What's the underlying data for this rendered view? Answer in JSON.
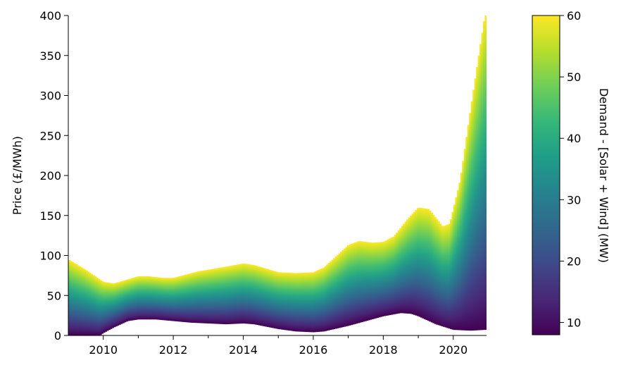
{
  "chart_data": {
    "type": "area",
    "subtype": "stacked-gradient-band",
    "ylabel": "Price (£/MWh)",
    "xlabel": "",
    "xlim": [
      2009.0,
      2020.95
    ],
    "ylim": [
      0,
      400
    ],
    "xticks": [
      2010,
      2012,
      2014,
      2016,
      2018,
      2020
    ],
    "xtick_labels": [
      "2010",
      "2012",
      "2014",
      "2016",
      "2018",
      "2020"
    ],
    "xminor_ticks": [
      2011,
      2013,
      2015,
      2017,
      2019
    ],
    "yticks": [
      0,
      50,
      100,
      150,
      200,
      250,
      300,
      350,
      400
    ],
    "ytick_labels": [
      "0",
      "50",
      "100",
      "150",
      "200",
      "250",
      "300",
      "350",
      "400"
    ],
    "grid": false,
    "series": [
      {
        "name": "Demand - [Solar + Wind] = 60 (upper edge)",
        "x": [
          2009.0,
          2009.5,
          2010.0,
          2010.3,
          2011.0,
          2011.3,
          2011.7,
          2012.0,
          2012.7,
          2013.5,
          2014.0,
          2014.3,
          2015.0,
          2015.5,
          2016.0,
          2016.3,
          2017.0,
          2017.3,
          2017.7,
          2018.0,
          2018.3,
          2018.7,
          2019.0,
          2019.3,
          2019.7,
          2019.9,
          2020.2,
          2020.5,
          2020.9
        ],
        "y": [
          95,
          82,
          67,
          65,
          74,
          74,
          72,
          72,
          80,
          86,
          90,
          88,
          79,
          78,
          79,
          85,
          113,
          118,
          116,
          117,
          124,
          146,
          160,
          158,
          136,
          140,
          195,
          285,
          400
        ]
      },
      {
        "name": "Demand - [Solar + Wind] = 8 (lower edge)",
        "x": [
          2009.0,
          2009.5,
          2009.9,
          2010.0,
          2010.3,
          2010.7,
          2011.0,
          2011.5,
          2012.0,
          2012.5,
          2013.0,
          2013.5,
          2014.0,
          2014.3,
          2015.0,
          2015.5,
          2016.0,
          2016.3,
          2017.0,
          2017.5,
          2018.0,
          2018.5,
          2018.8,
          2019.0,
          2019.5,
          2020.0,
          2020.5,
          2020.9
        ],
        "y": [
          0,
          0,
          0,
          3,
          10,
          18,
          20,
          20,
          18,
          16,
          15,
          14,
          15,
          14,
          8,
          5,
          4,
          5,
          12,
          18,
          24,
          28,
          27,
          24,
          14,
          7,
          6,
          7
        ]
      }
    ],
    "colorbar": {
      "label": "Demand - [Solar + Wind] (MW)",
      "colormap": "viridis",
      "range": [
        8,
        60
      ],
      "ticks": [
        10,
        20,
        30,
        40,
        50,
        60
      ],
      "tick_labels": [
        "10",
        "20",
        "30",
        "40",
        "50",
        "60"
      ]
    },
    "colors": {
      "viridis": [
        "#440154",
        "#482878",
        "#3e4989",
        "#31688e",
        "#26828e",
        "#1f9e89",
        "#35b779",
        "#6ece58",
        "#b5de2b",
        "#fde725"
      ]
    }
  }
}
